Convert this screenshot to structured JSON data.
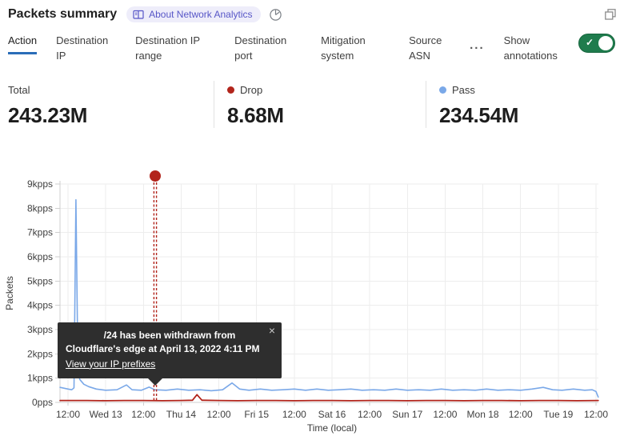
{
  "header": {
    "title": "Packets summary",
    "about_badge": "About Network Analytics"
  },
  "tabs": {
    "items": [
      {
        "label": "Action",
        "active": true
      },
      {
        "label": "Destination IP",
        "active": false
      },
      {
        "label": "Destination IP range",
        "active": false
      },
      {
        "label": "Destination port",
        "active": false
      },
      {
        "label": "Mitigation system",
        "active": false
      },
      {
        "label": "Source ASN",
        "active": false
      }
    ],
    "more_label": "...",
    "annotations_label": "Show annotations",
    "toggle_on": true
  },
  "stats": [
    {
      "label": "Total",
      "value": "243.23M",
      "dot_color": null
    },
    {
      "label": "Drop",
      "value": "8.68M",
      "dot_color": "#b2241b"
    },
    {
      "label": "Pass",
      "value": "234.54M",
      "dot_color": "#7aa8e8"
    }
  ],
  "tooltip": {
    "line1": "/24 has been withdrawn from",
    "line2": "Cloudflare's edge at April 13, 2022 4:11 PM",
    "link_label": "View your IP prefixes",
    "close_label": "×"
  },
  "colors": {
    "accent_blue": "#2a6db8",
    "drop_red": "#b2241b",
    "pass_blue": "#7aa8e8",
    "toggle_green": "#1f7c4d",
    "badge_purple": "#5756c7",
    "gridline": "#ededed",
    "axis": "#cfcfcf",
    "tick_text": "#3f3f3f"
  },
  "chart_data": {
    "type": "line",
    "title": "",
    "xlabel": "Time (local)",
    "ylabel": "Packets",
    "x_ticks": [
      "12:00",
      "Wed 13",
      "12:00",
      "Thu 14",
      "12:00",
      "Fri 15",
      "12:00",
      "Sat 16",
      "12:00",
      "Sun 17",
      "12:00",
      "Mon 18",
      "12:00",
      "Tue 19",
      "12:00"
    ],
    "y_ticks": [
      "0pps",
      "1kpps",
      "2kpps",
      "3kpps",
      "4kpps",
      "5kpps",
      "6kpps",
      "7kpps",
      "8kpps",
      "9kpps"
    ],
    "ylim": [
      0,
      9
    ],
    "grid": true,
    "legend_position": "stats-row",
    "series": [
      {
        "name": "Pass",
        "color": "#7aa8e8",
        "points": [
          [
            -0.21,
            0.62
          ],
          [
            0.0,
            0.55
          ],
          [
            0.1,
            0.52
          ],
          [
            0.16,
            0.6
          ],
          [
            0.21,
            8.35
          ],
          [
            0.26,
            1.7
          ],
          [
            0.31,
            0.95
          ],
          [
            0.42,
            0.75
          ],
          [
            0.55,
            0.65
          ],
          [
            0.75,
            0.55
          ],
          [
            1.0,
            0.5
          ],
          [
            1.3,
            0.52
          ],
          [
            1.55,
            0.72
          ],
          [
            1.7,
            0.52
          ],
          [
            1.95,
            0.5
          ],
          [
            2.15,
            0.63
          ],
          [
            2.3,
            0.52
          ],
          [
            2.6,
            0.5
          ],
          [
            2.9,
            0.55
          ],
          [
            3.2,
            0.5
          ],
          [
            3.5,
            0.52
          ],
          [
            3.8,
            0.48
          ],
          [
            4.1,
            0.52
          ],
          [
            4.35,
            0.8
          ],
          [
            4.55,
            0.55
          ],
          [
            4.8,
            0.5
          ],
          [
            5.1,
            0.55
          ],
          [
            5.4,
            0.5
          ],
          [
            5.7,
            0.52
          ],
          [
            6.0,
            0.55
          ],
          [
            6.3,
            0.5
          ],
          [
            6.6,
            0.55
          ],
          [
            6.9,
            0.5
          ],
          [
            7.2,
            0.52
          ],
          [
            7.5,
            0.55
          ],
          [
            7.8,
            0.5
          ],
          [
            8.1,
            0.52
          ],
          [
            8.4,
            0.5
          ],
          [
            8.7,
            0.55
          ],
          [
            9.0,
            0.5
          ],
          [
            9.3,
            0.52
          ],
          [
            9.6,
            0.5
          ],
          [
            9.9,
            0.55
          ],
          [
            10.2,
            0.5
          ],
          [
            10.5,
            0.52
          ],
          [
            10.8,
            0.5
          ],
          [
            11.1,
            0.55
          ],
          [
            11.4,
            0.5
          ],
          [
            11.7,
            0.52
          ],
          [
            12.0,
            0.5
          ],
          [
            12.3,
            0.55
          ],
          [
            12.6,
            0.62
          ],
          [
            12.85,
            0.52
          ],
          [
            13.1,
            0.5
          ],
          [
            13.4,
            0.55
          ],
          [
            13.7,
            0.5
          ],
          [
            13.9,
            0.52
          ],
          [
            14.0,
            0.45
          ],
          [
            14.06,
            0.22
          ]
        ]
      },
      {
        "name": "Drop",
        "color": "#b2241b",
        "points": [
          [
            -0.21,
            0.08
          ],
          [
            0.5,
            0.08
          ],
          [
            1.0,
            0.07
          ],
          [
            1.5,
            0.08
          ],
          [
            2.0,
            0.08
          ],
          [
            2.5,
            0.07
          ],
          [
            3.0,
            0.08
          ],
          [
            3.3,
            0.09
          ],
          [
            3.42,
            0.32
          ],
          [
            3.55,
            0.09
          ],
          [
            4.0,
            0.08
          ],
          [
            4.5,
            0.07
          ],
          [
            5.0,
            0.08
          ],
          [
            5.5,
            0.08
          ],
          [
            6.0,
            0.07
          ],
          [
            6.5,
            0.08
          ],
          [
            7.0,
            0.08
          ],
          [
            7.5,
            0.07
          ],
          [
            8.0,
            0.08
          ],
          [
            8.5,
            0.08
          ],
          [
            9.0,
            0.07
          ],
          [
            9.5,
            0.08
          ],
          [
            10.0,
            0.08
          ],
          [
            10.5,
            0.07
          ],
          [
            11.0,
            0.08
          ],
          [
            11.5,
            0.08
          ],
          [
            12.0,
            0.07
          ],
          [
            12.5,
            0.08
          ],
          [
            13.0,
            0.08
          ],
          [
            13.5,
            0.07
          ],
          [
            14.06,
            0.08
          ]
        ]
      }
    ],
    "annotation": {
      "x": 2.312,
      "color": "#b2241b",
      "description": "IP prefix /24 withdrawn from Cloudflare's edge at April 13, 2022 4:11 PM"
    }
  }
}
